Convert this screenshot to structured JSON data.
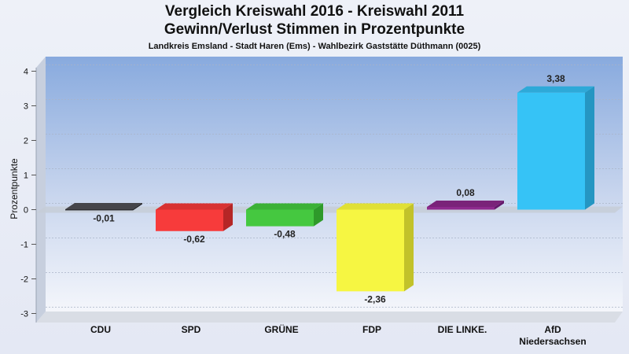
{
  "title_line1": "Vergleich Kreiswahl 2016 - Kreiswahl 2011",
  "title_line2": "Gewinn/Verlust Stimmen in Prozentpunkte",
  "subtitle": "Landkreis Emsland - Stadt Haren (Ems) - Wahlbezirk Gaststätte Düthmann (0025)",
  "chart_data": {
    "type": "bar",
    "title": "Vergleich Kreiswahl 2016 - Kreiswahl 2011 / Gewinn/Verlust Stimmen in Prozentpunkte",
    "ylabel": "Prozentpunkte",
    "xlabel": "",
    "ylim": [
      -3,
      4
    ],
    "yticks": [
      "4",
      "3",
      "2",
      "1",
      "0",
      "-1",
      "-2",
      "-3"
    ],
    "yticks_values": [
      4,
      3,
      2,
      1,
      0,
      -1,
      -2,
      -3
    ],
    "categories": [
      "CDU",
      "SPD",
      "GRÜNE",
      "FDP",
      "DIE LINKE.",
      "AfD Niedersachsen"
    ],
    "category_lines": [
      [
        "CDU"
      ],
      [
        "SPD"
      ],
      [
        "GRÜNE"
      ],
      [
        "FDP"
      ],
      [
        "DIE LINKE."
      ],
      [
        "AfD",
        "Niedersachsen"
      ]
    ],
    "values": [
      -0.01,
      -0.62,
      -0.48,
      -2.36,
      0.08,
      3.38
    ],
    "value_labels": [
      "-0,01",
      "-0,62",
      "-0,48",
      "-2,36",
      "0,08",
      "3,38"
    ],
    "colors": [
      "#2f2f33",
      "#f73b3b",
      "#45c840",
      "#f6f642",
      "#8e2a8e",
      "#36c3f6"
    ],
    "side_colors": [
      "#1d1d20",
      "#b52626",
      "#2e9a2a",
      "#c2c22a",
      "#64186a",
      "#2596c2"
    ],
    "top_colors": [
      "#45454a",
      "#d83232",
      "#3bb136",
      "#e0e035",
      "#7a2379",
      "#2ea9d8"
    ],
    "grid": true
  }
}
